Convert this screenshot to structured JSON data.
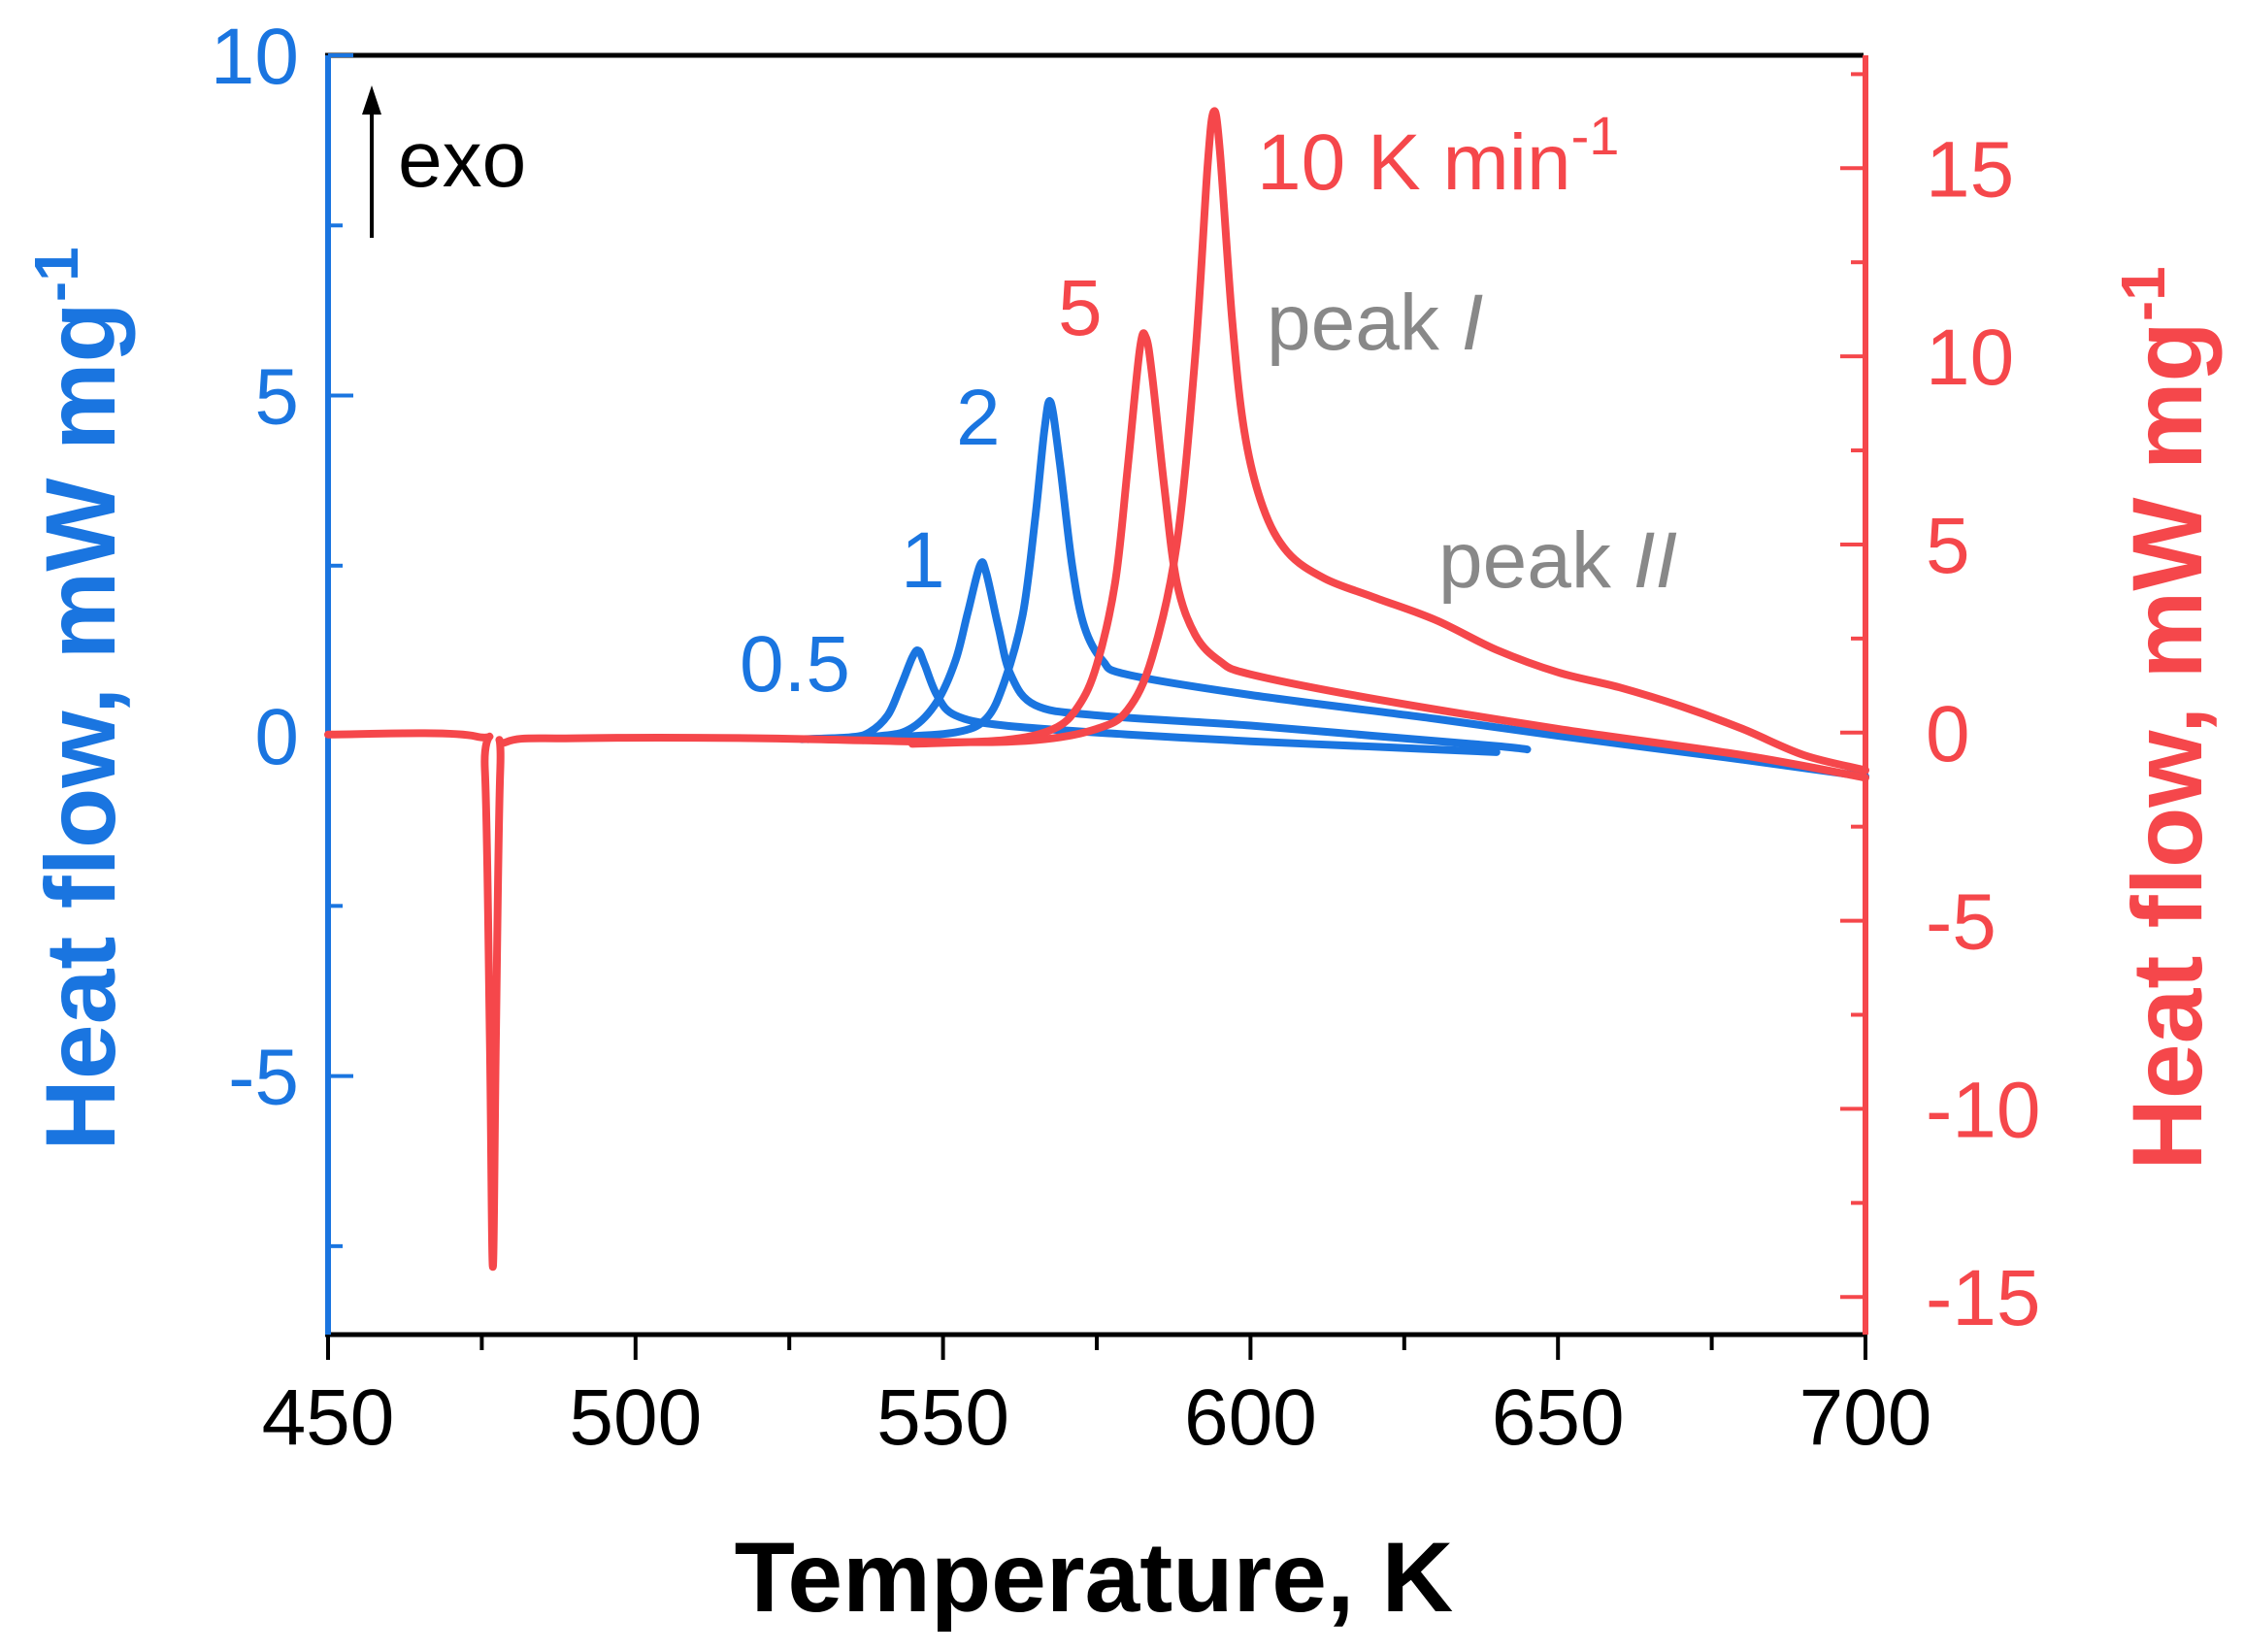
{
  "chart_data": {
    "type": "line",
    "title": "",
    "xlabel": "Temperature, K",
    "ylabel_left": "Heat flow, mW mg",
    "ylabel_left_sup": "-1",
    "ylabel_right": "Heat flow, mW mg",
    "ylabel_right_sup": "-1",
    "xlim": [
      450,
      700
    ],
    "ylim_left": [
      -8.8,
      10
    ],
    "ylim_right": [
      -16,
      18
    ],
    "x_ticks": [
      "450",
      "500",
      "550",
      "600",
      "650",
      "700"
    ],
    "left_ticks": [
      "10",
      "5",
      "0",
      "-5"
    ],
    "right_ticks": [
      "15",
      "10",
      "5",
      "0",
      "-5",
      "-10",
      "-15"
    ],
    "grid": false,
    "colors": {
      "left_axis": "#1a75e0",
      "right_axis": "#f5474b",
      "annotation": "#888888",
      "text": "#000000"
    },
    "series": [
      {
        "name": "0.5",
        "axis": "left",
        "color": "#1a75e0",
        "points": [
          [
            528,
            -0.05
          ],
          [
            535,
            -0.02
          ],
          [
            538,
            0.05
          ],
          [
            541,
            0.3
          ],
          [
            543,
            0.7
          ],
          [
            545,
            1.15
          ],
          [
            546,
            1.25
          ],
          [
            547,
            1.05
          ],
          [
            549,
            0.6
          ],
          [
            552,
            0.3
          ],
          [
            560,
            0.15
          ],
          [
            580,
            0.02
          ],
          [
            600,
            -0.08
          ],
          [
            620,
            -0.16
          ],
          [
            640,
            -0.24
          ]
        ]
      },
      {
        "name": "1",
        "axis": "left",
        "color": "#1a75e0",
        "points": [
          [
            527,
            -0.05
          ],
          [
            540,
            0.0
          ],
          [
            545,
            0.12
          ],
          [
            549,
            0.5
          ],
          [
            552,
            1.1
          ],
          [
            554,
            1.8
          ],
          [
            556,
            2.5
          ],
          [
            557,
            2.4
          ],
          [
            559,
            1.6
          ],
          [
            561,
            0.9
          ],
          [
            565,
            0.45
          ],
          [
            575,
            0.3
          ],
          [
            600,
            0.15
          ],
          [
            620,
            0.0
          ],
          [
            640,
            -0.15
          ],
          [
            645,
            -0.2
          ]
        ]
      },
      {
        "name": "2",
        "axis": "left",
        "color": "#1a75e0",
        "points": [
          [
            542,
            -0.02
          ],
          [
            552,
            0.05
          ],
          [
            557,
            0.25
          ],
          [
            560,
            0.8
          ],
          [
            563,
            1.8
          ],
          [
            565,
            3.2
          ],
          [
            566.5,
            4.5
          ],
          [
            567.5,
            4.9
          ],
          [
            569,
            4.0
          ],
          [
            571,
            2.5
          ],
          [
            573,
            1.6
          ],
          [
            576,
            1.1
          ],
          [
            580,
            0.9
          ],
          [
            600,
            0.6
          ],
          [
            630,
            0.25
          ],
          [
            650,
            0.0
          ],
          [
            680,
            -0.35
          ],
          [
            700,
            -0.6
          ]
        ]
      },
      {
        "name": "5",
        "axis": "right",
        "color": "#f5474b",
        "points": [
          [
            545,
            -0.3
          ],
          [
            560,
            -0.2
          ],
          [
            568,
            0.1
          ],
          [
            572,
            0.7
          ],
          [
            575,
            1.8
          ],
          [
            578,
            4.0
          ],
          [
            580,
            7.0
          ],
          [
            582,
            10.2
          ],
          [
            583,
            10.5
          ],
          [
            584,
            9.5
          ],
          [
            586,
            6.5
          ],
          [
            588,
            4.0
          ],
          [
            591,
            2.6
          ],
          [
            595,
            1.9
          ],
          [
            600,
            1.55
          ],
          [
            620,
            0.9
          ],
          [
            650,
            0.1
          ],
          [
            680,
            -0.6
          ],
          [
            700,
            -1.2
          ]
        ]
      },
      {
        "name": "10 K min⁻¹",
        "axis": "right",
        "color": "#f5474b",
        "points": [
          [
            450,
            -0.05
          ],
          [
            474,
            -0.1
          ],
          [
            475.5,
            -1.0
          ],
          [
            476.3,
            -8.0
          ],
          [
            476.8,
            -14.2
          ],
          [
            477.3,
            -8.0
          ],
          [
            478,
            -1.0
          ],
          [
            479,
            -0.25
          ],
          [
            490,
            -0.15
          ],
          [
            520,
            -0.15
          ],
          [
            550,
            -0.25
          ],
          [
            565,
            -0.2
          ],
          [
            575,
            0.1
          ],
          [
            580,
            0.6
          ],
          [
            584,
            2.0
          ],
          [
            588,
            5.0
          ],
          [
            591,
            10.0
          ],
          [
            593,
            15.0
          ],
          [
            594,
            16.5
          ],
          [
            595,
            15.5
          ],
          [
            597,
            11.0
          ],
          [
            599,
            8.0
          ],
          [
            602,
            6.0
          ],
          [
            606,
            4.8
          ],
          [
            612,
            4.1
          ],
          [
            620,
            3.6
          ],
          [
            630,
            3.0
          ],
          [
            640,
            2.2
          ],
          [
            650,
            1.6
          ],
          [
            660,
            1.2
          ],
          [
            670,
            0.7
          ],
          [
            680,
            0.1
          ],
          [
            690,
            -0.6
          ],
          [
            700,
            -1.0
          ]
        ]
      }
    ],
    "annotations": {
      "exo": "exo",
      "label_10": "10 K min",
      "label_10_sup": "-1",
      "label_5": "5",
      "label_2": "2",
      "label_1": "1",
      "label_05": "0.5",
      "peak1_text": "peak ",
      "peak1_roman": "I",
      "peak2_text": "peak ",
      "peak2_roman": "II"
    }
  }
}
